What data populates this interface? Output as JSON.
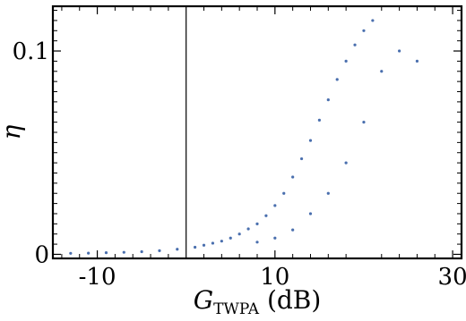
{
  "chart_data": {
    "type": "scatter",
    "xlabel_main": "G",
    "xlabel_sub": "TWPA",
    "xlabel_unit": " (dB)",
    "ylabel": "η",
    "xlim": [
      -15,
      31
    ],
    "ylim": [
      -0.002,
      0.122
    ],
    "x_ticks": [
      {
        "value": -10,
        "label": "-10"
      },
      {
        "value": 10,
        "label": "10"
      },
      {
        "value": 30,
        "label": "30"
      }
    ],
    "y_ticks": [
      {
        "value": 0,
        "label": "0"
      },
      {
        "value": 0.1,
        "label": "0.1"
      }
    ],
    "reference_line_x": 0,
    "marker_color": "#4a6fae",
    "series": [
      {
        "points": [
          [
            -13.0,
            0.0005
          ],
          [
            -11.0,
            0.0006
          ],
          [
            -9.0,
            0.0008
          ],
          [
            -7.0,
            0.001
          ],
          [
            -5.0,
            0.0013
          ],
          [
            -3.0,
            0.0018
          ],
          [
            -1.0,
            0.0025
          ],
          [
            1.0,
            0.0035
          ],
          [
            2.0,
            0.0045
          ],
          [
            3.0,
            0.0055
          ],
          [
            4.0,
            0.0065
          ],
          [
            5.0,
            0.008
          ],
          [
            6.0,
            0.01
          ],
          [
            7.0,
            0.0125
          ],
          [
            8.0,
            0.015
          ],
          [
            9.0,
            0.019
          ],
          [
            10.0,
            0.024
          ],
          [
            11.0,
            0.03
          ],
          [
            12.0,
            0.038
          ],
          [
            13.0,
            0.047
          ],
          [
            14.0,
            0.056
          ],
          [
            15.0,
            0.066
          ],
          [
            16.0,
            0.076
          ],
          [
            17.0,
            0.086
          ],
          [
            18.0,
            0.095
          ],
          [
            19.0,
            0.103
          ],
          [
            20.0,
            0.11
          ],
          [
            21.0,
            0.115
          ],
          [
            8.0,
            0.006
          ],
          [
            10.0,
            0.008
          ],
          [
            12.0,
            0.012
          ],
          [
            14.0,
            0.02
          ],
          [
            16.0,
            0.03
          ],
          [
            18.0,
            0.045
          ],
          [
            20.0,
            0.065
          ],
          [
            22.0,
            0.09
          ],
          [
            24.0,
            0.1
          ],
          [
            26.0,
            0.095
          ]
        ]
      }
    ]
  }
}
